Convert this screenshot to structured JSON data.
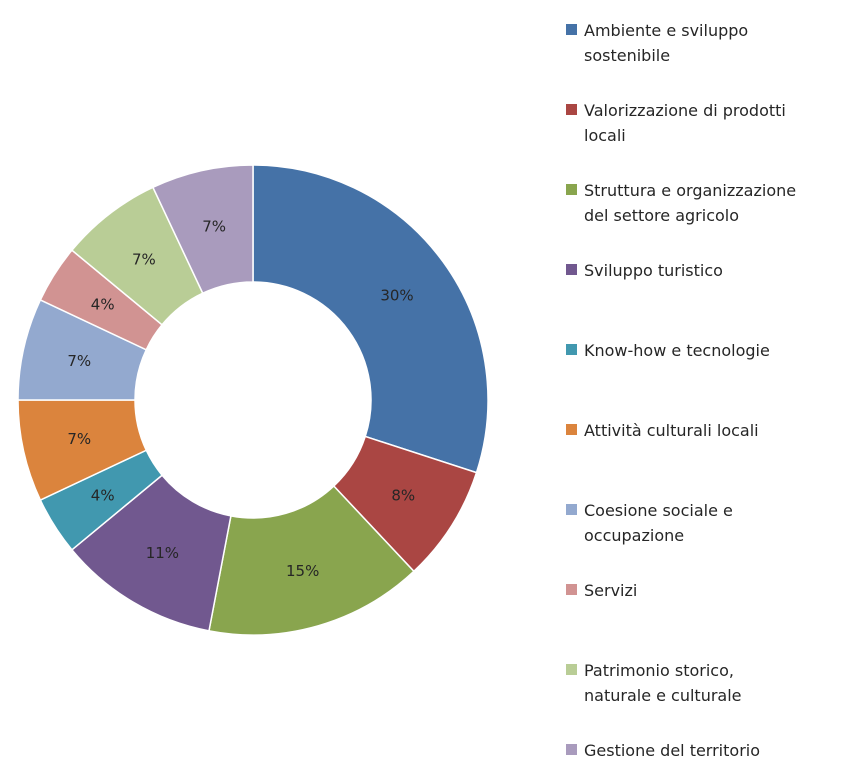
{
  "chart_data": {
    "type": "pie",
    "donut": true,
    "title": "",
    "legend_position": "right",
    "slices": [
      {
        "name": "Ambiente e sviluppo sostenibile",
        "value": 30,
        "label": "30%",
        "color": "#4572A7",
        "legend_lines": [
          "Ambiente e sviluppo",
          "sostenibile"
        ]
      },
      {
        "name": "Valorizzazione di prodotti locali",
        "value": 8,
        "label": "8%",
        "color": "#AA4643",
        "legend_lines": [
          "Valorizzazione di prodotti",
          "locali"
        ]
      },
      {
        "name": "Struttura e organizzazione del settore agricolo",
        "value": 15,
        "label": "15%",
        "color": "#89A54E",
        "legend_lines": [
          "Struttura e organizzazione",
          "del settore agricolo"
        ]
      },
      {
        "name": "Sviluppo turistico",
        "value": 11,
        "label": "11%",
        "color": "#71588F",
        "legend_lines": [
          "Sviluppo turistico"
        ]
      },
      {
        "name": "Know-how e tecnologie",
        "value": 4,
        "label": "4%",
        "color": "#4198AF",
        "legend_lines": [
          "Know-how e tecnologie"
        ]
      },
      {
        "name": "Attività culturali locali",
        "value": 7,
        "label": "7%",
        "color": "#DB843D",
        "legend_lines": [
          "Attività culturali locali"
        ]
      },
      {
        "name": "Coesione sociale e occupazione",
        "value": 7,
        "label": "7%",
        "color": "#93A9CF",
        "legend_lines": [
          "Coesione sociale e",
          "occupazione"
        ]
      },
      {
        "name": "Servizi",
        "value": 4,
        "label": "4%",
        "color": "#D19392",
        "legend_lines": [
          "Servizi"
        ]
      },
      {
        "name": "Patrimonio storico, naturale e culturale",
        "value": 7,
        "label": "7%",
        "color": "#B9CD96",
        "legend_lines": [
          "Patrimonio storico,",
          "naturale e culturale"
        ]
      },
      {
        "name": "Gestione del territorio",
        "value": 7,
        "label": "7%",
        "color": "#A99BBD",
        "legend_lines": [
          "Gestione del territorio"
        ]
      }
    ]
  }
}
